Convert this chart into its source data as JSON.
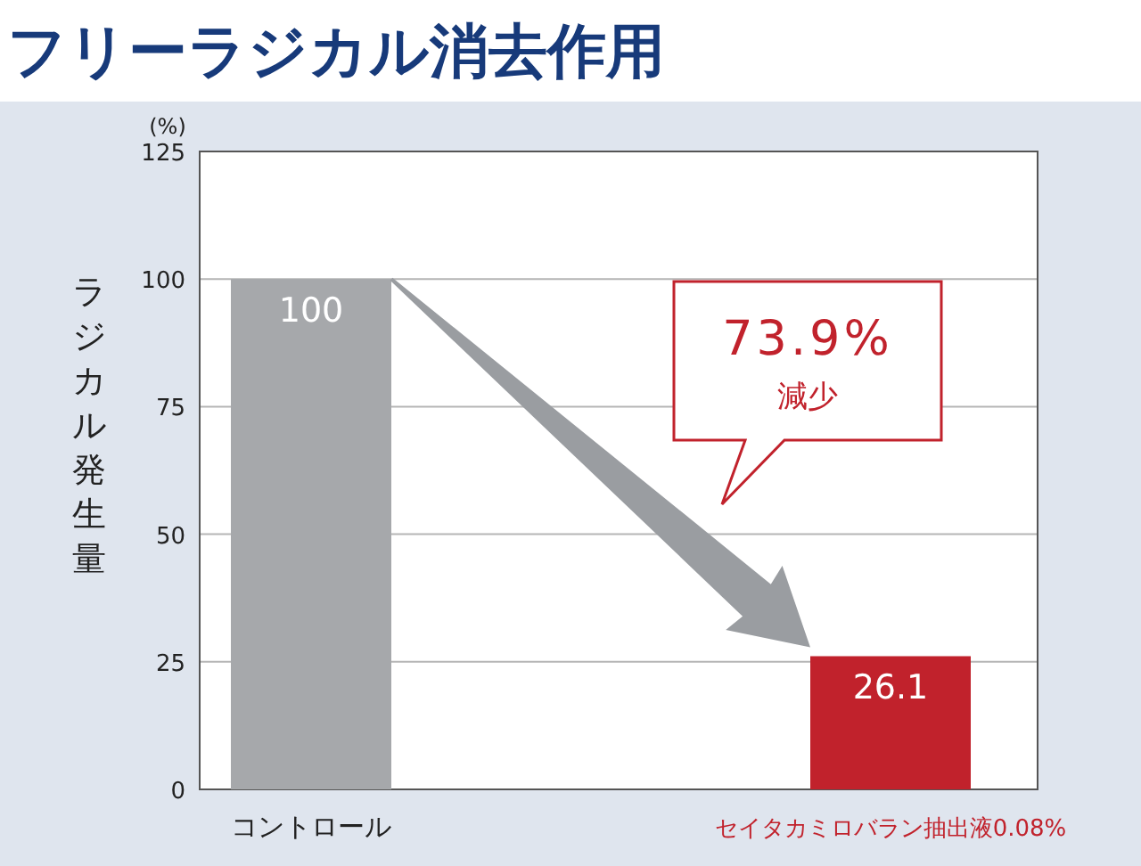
{
  "chart_data": {
    "type": "bar",
    "title": "フリーラジカル消去作用",
    "ylabel": "ラジカル発生量",
    "categories": [
      "コントロール",
      "セイタカミロバラン抽出液0.08%"
    ],
    "values": [
      100,
      26.1
    ],
    "colors": [
      "#a6a8ab",
      "#c1222c"
    ],
    "ylim": [
      0,
      125
    ],
    "yticks": [
      0,
      25,
      50,
      75,
      100,
      125
    ],
    "grid": "y",
    "data_labels": true,
    "annotations": [
      "(%)",
      "73.9%",
      "減少"
    ]
  }
}
